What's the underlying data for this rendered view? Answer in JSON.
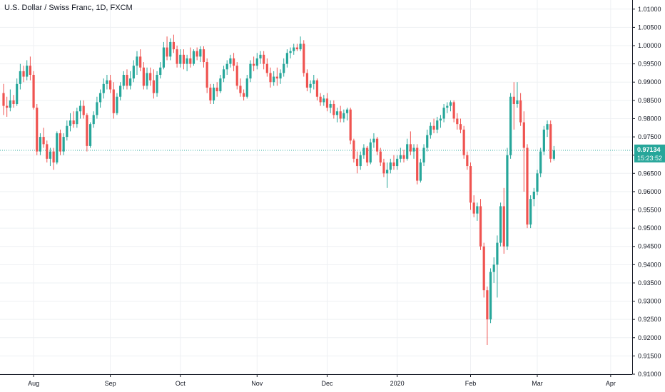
{
  "title": "U.S. Dollar / Swiss Franc, 1D, FXCM",
  "colors": {
    "up": "#26a69a",
    "down": "#ef5350",
    "grid": "#eef0f3",
    "axis": "#131722",
    "price_tag": "#26a69a",
    "price_line": "#26a69a"
  },
  "current_price": {
    "price": "0.97134",
    "countdown": "15:23:52"
  },
  "chart_data": {
    "type": "candlestick",
    "title": "U.S. Dollar / Swiss Franc, 1D, FXCM",
    "ylim": [
      0.91,
      1.0125
    ],
    "y_ticks": [
      "1.01000",
      "1.00500",
      "1.00000",
      "0.99500",
      "0.99000",
      "0.98500",
      "0.98000",
      "0.97500",
      "0.97000",
      "0.96500",
      "0.96000",
      "0.95500",
      "0.95000",
      "0.94500",
      "0.94000",
      "0.93500",
      "0.93000",
      "0.92500",
      "0.92000",
      "0.91500",
      "0.91000"
    ],
    "x_ticks": [
      {
        "label": "Aug",
        "index": 9
      },
      {
        "label": "Sep",
        "index": 32
      },
      {
        "label": "Oct",
        "index": 53
      },
      {
        "label": "Nov",
        "index": 76
      },
      {
        "label": "Dec",
        "index": 97
      },
      {
        "label": "2020",
        "index": 118
      },
      {
        "label": "Feb",
        "index": 140
      },
      {
        "label": "Mar",
        "index": 160
      },
      {
        "label": "Apr",
        "index": 182
      }
    ],
    "candles": [
      [
        0.987,
        0.9895,
        0.981,
        0.9835
      ],
      [
        0.9835,
        0.986,
        0.9805,
        0.983
      ],
      [
        0.983,
        0.988,
        0.982,
        0.985
      ],
      [
        0.985,
        0.9865,
        0.983,
        0.984
      ],
      [
        0.984,
        0.991,
        0.9835,
        0.9895
      ],
      [
        0.9895,
        0.995,
        0.988,
        0.993
      ],
      [
        0.993,
        0.9945,
        0.99,
        0.9915
      ],
      [
        0.9915,
        0.996,
        0.9905,
        0.9945
      ],
      [
        0.9945,
        0.997,
        0.9905,
        0.992
      ],
      [
        0.992,
        0.993,
        0.9825,
        0.983
      ],
      [
        0.983,
        0.984,
        0.97,
        0.971
      ],
      [
        0.971,
        0.976,
        0.97,
        0.975
      ],
      [
        0.975,
        0.9775,
        0.972,
        0.973
      ],
      [
        0.973,
        0.974,
        0.968,
        0.969
      ],
      [
        0.969,
        0.972,
        0.967,
        0.971
      ],
      [
        0.971,
        0.972,
        0.966,
        0.968
      ],
      [
        0.968,
        0.9765,
        0.9675,
        0.976
      ],
      [
        0.976,
        0.977,
        0.97,
        0.971
      ],
      [
        0.971,
        0.976,
        0.97,
        0.975
      ],
      [
        0.975,
        0.9795,
        0.974,
        0.978
      ],
      [
        0.978,
        0.9815,
        0.9765,
        0.9795
      ],
      [
        0.9795,
        0.982,
        0.9775,
        0.9785
      ],
      [
        0.9785,
        0.983,
        0.9775,
        0.982
      ],
      [
        0.982,
        0.985,
        0.98,
        0.9835
      ],
      [
        0.9835,
        0.985,
        0.98,
        0.981
      ],
      [
        0.981,
        0.9815,
        0.971,
        0.9725
      ],
      [
        0.9725,
        0.979,
        0.972,
        0.9785
      ],
      [
        0.9785,
        0.982,
        0.9775,
        0.981
      ],
      [
        0.981,
        0.986,
        0.98,
        0.9845
      ],
      [
        0.9845,
        0.988,
        0.983,
        0.987
      ],
      [
        0.987,
        0.991,
        0.9855,
        0.9895
      ],
      [
        0.9895,
        0.992,
        0.988,
        0.9905
      ],
      [
        0.9905,
        0.992,
        0.987,
        0.988
      ],
      [
        0.988,
        0.99,
        0.98,
        0.9815
      ],
      [
        0.9815,
        0.987,
        0.981,
        0.986
      ],
      [
        0.986,
        0.99,
        0.985,
        0.989
      ],
      [
        0.989,
        0.993,
        0.988,
        0.992
      ],
      [
        0.992,
        0.9935,
        0.988,
        0.989
      ],
      [
        0.989,
        0.993,
        0.988,
        0.991
      ],
      [
        0.991,
        0.996,
        0.99,
        0.9945
      ],
      [
        0.9945,
        0.9985,
        0.992,
        0.997
      ],
      [
        0.997,
        0.999,
        0.993,
        0.994
      ],
      [
        0.994,
        0.9955,
        0.988,
        0.989
      ],
      [
        0.989,
        0.994,
        0.988,
        0.9925
      ],
      [
        0.9925,
        0.994,
        0.989,
        0.9905
      ],
      [
        0.9905,
        0.9935,
        0.9855,
        0.987
      ],
      [
        0.987,
        0.993,
        0.986,
        0.992
      ],
      [
        0.992,
        0.9955,
        0.991,
        0.994
      ],
      [
        0.994,
        1.001,
        0.9935,
        0.9995
      ],
      [
        0.9995,
        1.0025,
        0.996,
        0.997
      ],
      [
        0.997,
        1.002,
        0.996,
        1.001
      ],
      [
        1.001,
        1.003,
        0.998,
        0.999
      ],
      [
        0.999,
        1.0,
        0.994,
        0.995
      ],
      [
        0.995,
        0.999,
        0.994,
        0.9975
      ],
      [
        0.9975,
        0.999,
        0.9935,
        0.995
      ],
      [
        0.995,
        0.9975,
        0.993,
        0.9965
      ],
      [
        0.9965,
        0.9995,
        0.994,
        0.995
      ],
      [
        0.995,
        0.999,
        0.9945,
        0.9985
      ],
      [
        0.9985,
        0.9995,
        0.996,
        0.997
      ],
      [
        0.997,
        0.9998,
        0.9955,
        0.999
      ],
      [
        0.999,
        0.9998,
        0.994,
        0.9955
      ],
      [
        0.9955,
        0.9965,
        0.987,
        0.9885
      ],
      [
        0.9885,
        0.9895,
        0.984,
        0.985
      ],
      [
        0.985,
        0.9895,
        0.984,
        0.9885
      ],
      [
        0.9885,
        0.99,
        0.986,
        0.9875
      ],
      [
        0.9875,
        0.992,
        0.987,
        0.991
      ],
      [
        0.991,
        0.9945,
        0.99,
        0.9935
      ],
      [
        0.9935,
        0.996,
        0.992,
        0.995
      ],
      [
        0.995,
        0.9975,
        0.994,
        0.9965
      ],
      [
        0.9965,
        0.998,
        0.993,
        0.9945
      ],
      [
        0.9945,
        0.9955,
        0.988,
        0.989
      ],
      [
        0.989,
        0.991,
        0.986,
        0.987
      ],
      [
        0.987,
        0.988,
        0.985,
        0.986
      ],
      [
        0.986,
        0.992,
        0.9855,
        0.991
      ],
      [
        0.991,
        0.996,
        0.99,
        0.995
      ],
      [
        0.995,
        0.997,
        0.993,
        0.9945
      ],
      [
        0.9945,
        0.998,
        0.9935,
        0.9965
      ],
      [
        0.9965,
        0.9985,
        0.995,
        0.9975
      ],
      [
        0.9975,
        0.9985,
        0.9935,
        0.995
      ],
      [
        0.995,
        0.9965,
        0.9915,
        0.9925
      ],
      [
        0.9925,
        0.994,
        0.9885,
        0.99
      ],
      [
        0.99,
        0.993,
        0.989,
        0.9915
      ],
      [
        0.9915,
        0.994,
        0.989,
        0.991
      ],
      [
        0.991,
        0.9935,
        0.9895,
        0.9925
      ],
      [
        0.9925,
        0.9965,
        0.9915,
        0.995
      ],
      [
        0.995,
        0.999,
        0.994,
        0.998
      ],
      [
        0.998,
        0.9995,
        0.9965,
        0.9985
      ],
      [
        0.9985,
        1.0005,
        0.9975,
        0.9995
      ],
      [
        0.9995,
        1.0005,
        0.9985,
        0.999
      ],
      [
        0.999,
        1.0025,
        0.9985,
        1.0005
      ],
      [
        1.0005,
        1.0015,
        0.9915,
        0.9925
      ],
      [
        0.9925,
        0.9935,
        0.9875,
        0.9885
      ],
      [
        0.9885,
        0.9905,
        0.987,
        0.9895
      ],
      [
        0.9895,
        0.992,
        0.988,
        0.9905
      ],
      [
        0.9905,
        0.991,
        0.985,
        0.986
      ],
      [
        0.986,
        0.987,
        0.9835,
        0.9845
      ],
      [
        0.9845,
        0.9865,
        0.9835,
        0.9855
      ],
      [
        0.9855,
        0.987,
        0.982,
        0.983
      ],
      [
        0.983,
        0.985,
        0.9815,
        0.984
      ],
      [
        0.984,
        0.985,
        0.98,
        0.981
      ],
      [
        0.981,
        0.983,
        0.979,
        0.982
      ],
      [
        0.982,
        0.9835,
        0.979,
        0.98
      ],
      [
        0.98,
        0.9825,
        0.979,
        0.9815
      ],
      [
        0.9815,
        0.983,
        0.9795,
        0.9825
      ],
      [
        0.9825,
        0.983,
        0.973,
        0.974
      ],
      [
        0.974,
        0.9745,
        0.968,
        0.969
      ],
      [
        0.969,
        0.971,
        0.965,
        0.967
      ],
      [
        0.967,
        0.971,
        0.966,
        0.97
      ],
      [
        0.97,
        0.973,
        0.969,
        0.972
      ],
      [
        0.972,
        0.9725,
        0.967,
        0.968
      ],
      [
        0.968,
        0.9745,
        0.9675,
        0.9735
      ],
      [
        0.9735,
        0.976,
        0.972,
        0.9745
      ],
      [
        0.9745,
        0.975,
        0.97,
        0.971
      ],
      [
        0.971,
        0.972,
        0.967,
        0.968
      ],
      [
        0.968,
        0.969,
        0.964,
        0.965
      ],
      [
        0.965,
        0.968,
        0.961,
        0.966
      ],
      [
        0.966,
        0.969,
        0.965,
        0.968
      ],
      [
        0.968,
        0.97,
        0.966,
        0.967
      ],
      [
        0.967,
        0.97,
        0.966,
        0.969
      ],
      [
        0.969,
        0.972,
        0.968,
        0.97
      ],
      [
        0.97,
        0.9715,
        0.968,
        0.969
      ],
      [
        0.969,
        0.9745,
        0.9685,
        0.973
      ],
      [
        0.973,
        0.9765,
        0.97,
        0.971
      ],
      [
        0.971,
        0.973,
        0.969,
        0.972
      ],
      [
        0.972,
        0.973,
        0.962,
        0.963
      ],
      [
        0.963,
        0.969,
        0.9625,
        0.968
      ],
      [
        0.968,
        0.973,
        0.967,
        0.972
      ],
      [
        0.972,
        0.977,
        0.971,
        0.9755
      ],
      [
        0.9755,
        0.979,
        0.9745,
        0.978
      ],
      [
        0.978,
        0.98,
        0.976,
        0.977
      ],
      [
        0.977,
        0.9805,
        0.976,
        0.9795
      ],
      [
        0.9795,
        0.981,
        0.9775,
        0.98
      ],
      [
        0.98,
        0.984,
        0.979,
        0.983
      ],
      [
        0.983,
        0.9845,
        0.9815,
        0.9835
      ],
      [
        0.9835,
        0.985,
        0.982,
        0.9845
      ],
      [
        0.9845,
        0.985,
        0.979,
        0.98
      ],
      [
        0.98,
        0.9815,
        0.977,
        0.9785
      ],
      [
        0.9785,
        0.98,
        0.976,
        0.977
      ],
      [
        0.977,
        0.978,
        0.969,
        0.97
      ],
      [
        0.97,
        0.971,
        0.966,
        0.967
      ],
      [
        0.967,
        0.968,
        0.955,
        0.957
      ],
      [
        0.957,
        0.959,
        0.953,
        0.954
      ],
      [
        0.954,
        0.957,
        0.952,
        0.956
      ],
      [
        0.956,
        0.958,
        0.944,
        0.945
      ],
      [
        0.945,
        0.946,
        0.931,
        0.933
      ],
      [
        0.933,
        0.934,
        0.918,
        0.925
      ],
      [
        0.925,
        0.939,
        0.924,
        0.938
      ],
      [
        0.938,
        0.942,
        0.935,
        0.94
      ],
      [
        0.94,
        0.948,
        0.931,
        0.946
      ],
      [
        0.946,
        0.957,
        0.945,
        0.956
      ],
      [
        0.956,
        0.961,
        0.943,
        0.945
      ],
      [
        0.945,
        0.972,
        0.944,
        0.97
      ],
      [
        0.97,
        0.987,
        0.969,
        0.986
      ],
      [
        0.986,
        0.99,
        0.977,
        0.984
      ],
      [
        0.984,
        0.99,
        0.983,
        0.985
      ],
      [
        0.985,
        0.987,
        0.978,
        0.979
      ],
      [
        0.979,
        0.982,
        0.96,
        0.972
      ],
      [
        0.972,
        0.973,
        0.95,
        0.951
      ],
      [
        0.951,
        0.959,
        0.95,
        0.958
      ],
      [
        0.958,
        0.961,
        0.956,
        0.96
      ],
      [
        0.96,
        0.966,
        0.959,
        0.965
      ],
      [
        0.965,
        0.972,
        0.964,
        0.971
      ],
      [
        0.971,
        0.978,
        0.97,
        0.977
      ],
      [
        0.977,
        0.9795,
        0.975,
        0.9785
      ],
      [
        0.9785,
        0.9795,
        0.968,
        0.969
      ],
      [
        0.969,
        0.9725,
        0.9685,
        0.9713
      ]
    ]
  }
}
